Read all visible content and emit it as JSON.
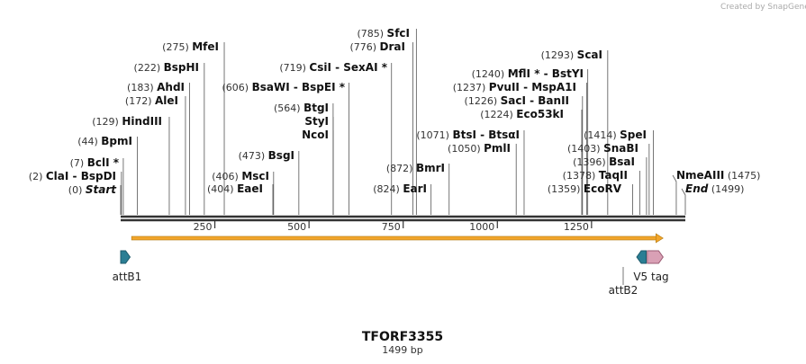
{
  "watermark": "Created by SnapGene",
  "title": "TFORF3355",
  "length_label": "1499 bp",
  "sequence_length": 1499,
  "ruler_ticks": [
    250,
    500,
    750,
    1000,
    1250
  ],
  "colors": {
    "backbone": "#333333",
    "orf": "#f2a52a",
    "attB": "#2b7e94",
    "v5": "#d9a0b5",
    "line": "#555555"
  },
  "sites": [
    {
      "pos": 0,
      "pos_label": "(0)",
      "name": "Start",
      "italic": true
    },
    {
      "pos": 2,
      "pos_label": "(2)",
      "name": "ClaI  -  BspDI"
    },
    {
      "pos": 7,
      "pos_label": "(7)",
      "name": "BclI *"
    },
    {
      "pos": 44,
      "pos_label": "(44)",
      "name": "BpmI"
    },
    {
      "pos": 129,
      "pos_label": "(129)",
      "name": "HindIII"
    },
    {
      "pos": 172,
      "pos_label": "(172)",
      "name": "AleI"
    },
    {
      "pos": 183,
      "pos_label": "(183)",
      "name": "AhdI"
    },
    {
      "pos": 222,
      "pos_label": "(222)",
      "name": "BspHI"
    },
    {
      "pos": 275,
      "pos_label": "(275)",
      "name": "MfeI"
    },
    {
      "pos": 404,
      "pos_label": "(404)",
      "name": "EaeI"
    },
    {
      "pos": 406,
      "pos_label": "(406)",
      "name": "MscI"
    },
    {
      "pos": 473,
      "pos_label": "(473)",
      "name": "BsgI"
    },
    {
      "pos": 564,
      "pos_label": "(564)",
      "name": "BtgI"
    },
    {
      "pos": 564,
      "pos_label": "",
      "name": "StyI"
    },
    {
      "pos": 564,
      "pos_label": "",
      "name": "NcoI"
    },
    {
      "pos": 606,
      "pos_label": "(606)",
      "name": "BsaWI  -  BspEI *"
    },
    {
      "pos": 719,
      "pos_label": "(719)",
      "name": "CsiI  -  SexAI *"
    },
    {
      "pos": 776,
      "pos_label": "(776)",
      "name": "DraI"
    },
    {
      "pos": 785,
      "pos_label": "(785)",
      "name": "SfcI"
    },
    {
      "pos": 824,
      "pos_label": "(824)",
      "name": "EarI"
    },
    {
      "pos": 872,
      "pos_label": "(872)",
      "name": "BmrI"
    },
    {
      "pos": 1050,
      "pos_label": "(1050)",
      "name": "PmlI"
    },
    {
      "pos": 1071,
      "pos_label": "(1071)",
      "name": "BtsI  -  BtsαI"
    },
    {
      "pos": 1224,
      "pos_label": "(1224)",
      "name": "Eco53kI"
    },
    {
      "pos": 1226,
      "pos_label": "(1226)",
      "name": "SacI  -  BanII"
    },
    {
      "pos": 1237,
      "pos_label": "(1237)",
      "name": "PvuII  -  MspA1I"
    },
    {
      "pos": 1240,
      "pos_label": "(1240)",
      "name": "MflI *  -  BstYI"
    },
    {
      "pos": 1293,
      "pos_label": "(1293)",
      "name": "ScaI"
    },
    {
      "pos": 1359,
      "pos_label": "(1359)",
      "name": "EcoRV"
    },
    {
      "pos": 1378,
      "pos_label": "(1378)",
      "name": "TaqII"
    },
    {
      "pos": 1396,
      "pos_label": "(1396)",
      "name": "BsaI"
    },
    {
      "pos": 1403,
      "pos_label": "(1403)",
      "name": "SnaBI"
    },
    {
      "pos": 1414,
      "pos_label": "(1414)",
      "name": "SpeI"
    },
    {
      "pos": 1475,
      "pos_label": "(1475)",
      "name": "NmeAIII"
    },
    {
      "pos": 1499,
      "pos_label": "(1499)",
      "name": "End",
      "italic": true
    }
  ],
  "features": [
    {
      "name": "attB1",
      "start": 0,
      "end": 25,
      "direction": "forward",
      "kind": "attB"
    },
    {
      "name": "attB2",
      "start": 1370,
      "end": 1395,
      "direction": "reverse",
      "kind": "attB"
    },
    {
      "name": "V5 tag",
      "start": 1398,
      "end": 1440,
      "direction": "forward",
      "kind": "v5"
    }
  ],
  "orf": {
    "start": 29,
    "end": 1440
  }
}
